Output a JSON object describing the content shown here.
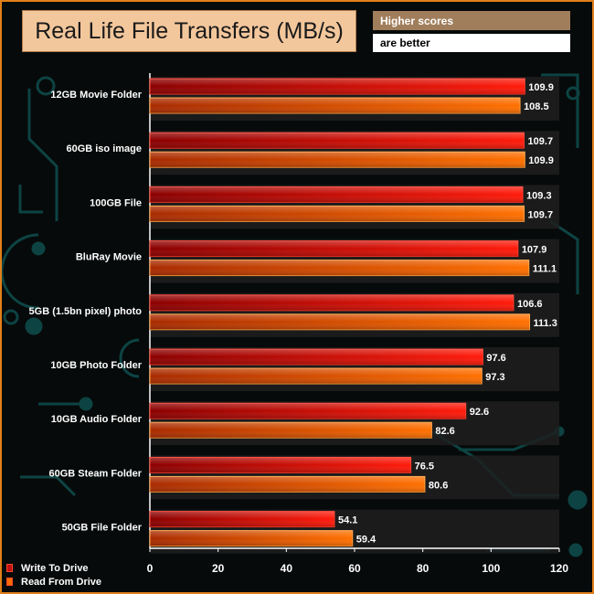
{
  "title": "Real Life File Transfers (MB/s)",
  "note_line1": "Higher scores",
  "note_line2": "are better",
  "colors": {
    "write": "#e01010",
    "write_dark": "#8a0000",
    "read": "#ff6a00",
    "read_dark": "#a82a00",
    "panel": "#1f1f1f",
    "frame": "#e0801a",
    "circuit": "#0e4a4a"
  },
  "chart_data": {
    "type": "bar",
    "orientation": "horizontal",
    "title": "Real Life File Transfers (MB/s)",
    "categories": [
      "12GB Movie Folder",
      "60GB iso image",
      "100GB File",
      "BluRay Movie",
      "5GB (1.5bn pixel) photo",
      "10GB Photo Folder",
      "10GB Audio Folder",
      "60GB Steam Folder",
      "50GB File Folder"
    ],
    "series": [
      {
        "name": "Write To  Drive",
        "values": [
          109.9,
          109.7,
          109.3,
          107.9,
          106.6,
          97.6,
          92.6,
          76.5,
          54.1
        ]
      },
      {
        "name": "Read From  Drive",
        "values": [
          108.5,
          109.9,
          109.7,
          111.1,
          111.3,
          97.3,
          82.6,
          80.6,
          59.4
        ]
      }
    ],
    "xlim": [
      0,
      120
    ],
    "xticks": [
      "0",
      "20",
      "40",
      "60",
      "80",
      "100",
      "120"
    ],
    "xlabel": "",
    "ylabel": "",
    "legend": "bottom-left"
  }
}
